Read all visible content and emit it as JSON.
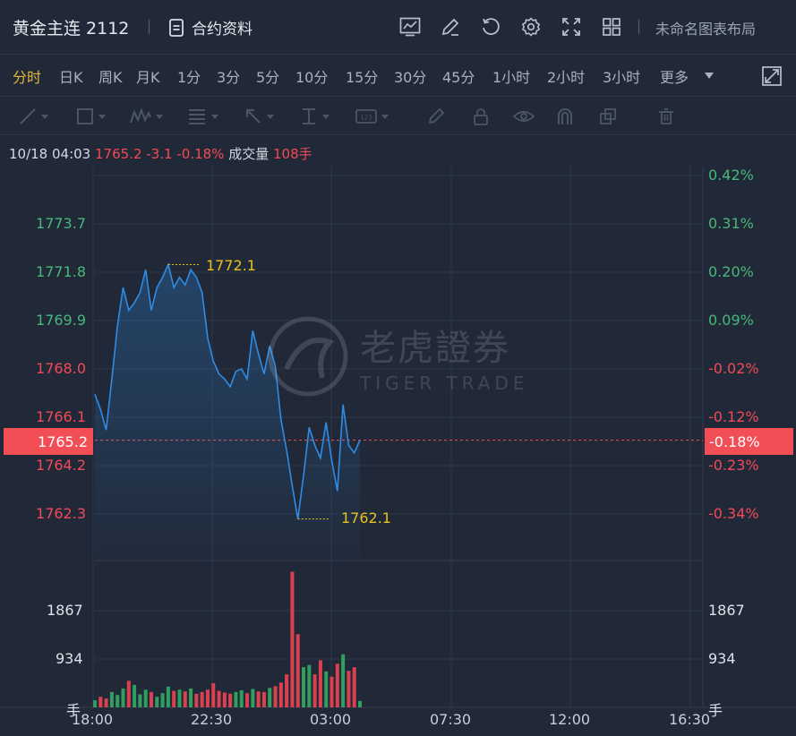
{
  "header": {
    "title": "黄金主连 2112",
    "contract_label": "合约资料",
    "layout_name": "未命名图表布局"
  },
  "icons": [
    "chart-line-icon",
    "edit-icon",
    "refresh-icon",
    "gear-icon",
    "fullscreen-icon",
    "grid-icon",
    "document-icon",
    "expand-icon"
  ],
  "periods": [
    {
      "label": "分时",
      "active": true
    },
    {
      "label": "日K"
    },
    {
      "label": "周K"
    },
    {
      "label": "月K"
    },
    {
      "label": "1分"
    },
    {
      "label": "3分"
    },
    {
      "label": "5分"
    },
    {
      "label": "10分"
    },
    {
      "label": "15分"
    },
    {
      "label": "30分"
    },
    {
      "label": "45分"
    },
    {
      "label": "1小时"
    },
    {
      "label": "2小时"
    },
    {
      "label": "3小时"
    },
    {
      "label": "更多"
    }
  ],
  "info": {
    "datetime": "10/18 04:03",
    "price": "1765.2",
    "change": "-3.1",
    "change_pct": "-0.18%",
    "volume_label": "成交量",
    "volume": "108手"
  },
  "watermark": {
    "cn": "老虎證券",
    "en": "TIGER TRADE"
  },
  "colors": {
    "background": "#212938",
    "price_line": "#2e8ce6",
    "up": "#47b879",
    "down": "#f24957",
    "marker": "#e7c21e"
  },
  "chart_data": {
    "type": "line",
    "current_price": "1765.2",
    "current_pct": "-0.18%",
    "left_axis": [
      {
        "label": "1773.7",
        "value": 1773.7,
        "color": "up"
      },
      {
        "label": "1771.8",
        "value": 1771.8,
        "color": "up"
      },
      {
        "label": "1769.9",
        "value": 1769.9,
        "color": "up"
      },
      {
        "label": "1768.0",
        "value": 1768.0,
        "color": "down"
      },
      {
        "label": "1766.1",
        "value": 1766.1,
        "color": "down"
      },
      {
        "label": "1764.2",
        "value": 1764.2,
        "color": "down"
      },
      {
        "label": "1762.3",
        "value": 1762.3,
        "color": "down"
      }
    ],
    "right_axis": [
      {
        "label": "0.42%",
        "value": 1775.6,
        "color": "up"
      },
      {
        "label": "0.31%",
        "value": 1773.7,
        "color": "up"
      },
      {
        "label": "0.20%",
        "value": 1771.8,
        "color": "up"
      },
      {
        "label": "0.09%",
        "value": 1769.9,
        "color": "up"
      },
      {
        "label": "-0.02%",
        "value": 1768.0,
        "color": "down"
      },
      {
        "label": "-0.12%",
        "value": 1766.1,
        "color": "down"
      },
      {
        "label": "-0.23%",
        "value": 1764.2,
        "color": "down"
      },
      {
        "label": "-0.34%",
        "value": 1762.3,
        "color": "down"
      }
    ],
    "high": {
      "label": "1772.1",
      "value": 1772.1
    },
    "low": {
      "label": "1762.1",
      "value": 1762.1
    },
    "volume_axis": [
      "1867",
      "934"
    ],
    "volume_unit": "手",
    "x_ticks": [
      "18:00",
      "22:30",
      "03:00",
      "07:30",
      "12:00",
      "16:30"
    ],
    "price_series": [
      1767.0,
      1766.4,
      1765.6,
      1767.6,
      1769.7,
      1771.2,
      1770.3,
      1770.6,
      1771.0,
      1771.9,
      1770.3,
      1771.2,
      1771.6,
      1772.1,
      1771.2,
      1771.6,
      1771.3,
      1771.9,
      1771.6,
      1771.0,
      1769.2,
      1768.3,
      1767.8,
      1767.6,
      1767.3,
      1767.9,
      1768.0,
      1767.6,
      1769.5,
      1768.6,
      1767.8,
      1768.9,
      1768.1,
      1766.0,
      1764.8,
      1763.4,
      1762.1,
      1763.8,
      1765.7,
      1765.0,
      1764.5,
      1765.9,
      1764.4,
      1763.2,
      1766.6,
      1765.0,
      1764.7,
      1765.2
    ],
    "volume_series": [
      120,
      180,
      150,
      260,
      210,
      320,
      450,
      380,
      220,
      300,
      260,
      180,
      240,
      350,
      280,
      300,
      270,
      320,
      230,
      260,
      300,
      410,
      280,
      250,
      230,
      260,
      290,
      240,
      310,
      270,
      260,
      330,
      360,
      420,
      560,
      2300,
      1240,
      680,
      720,
      560,
      800,
      610,
      520,
      740,
      900,
      620,
      680,
      108
    ]
  }
}
